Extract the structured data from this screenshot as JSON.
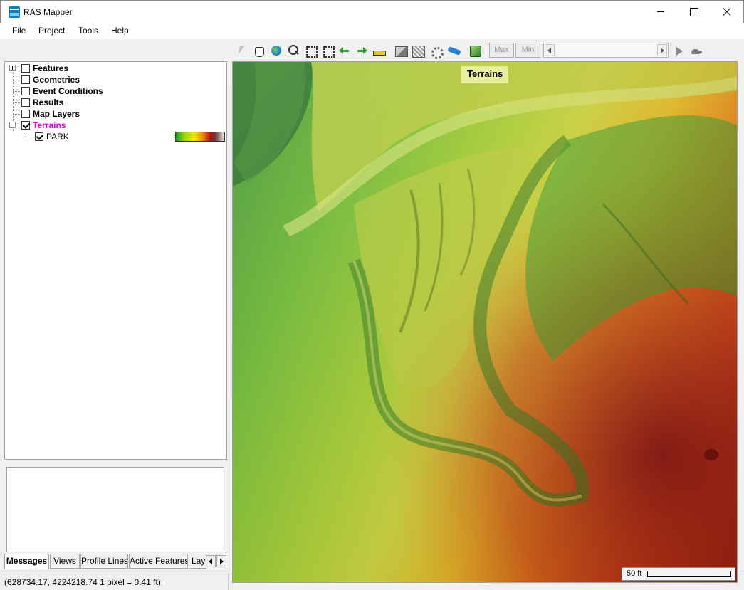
{
  "window": {
    "title": "RAS Mapper"
  },
  "menu": [
    "File",
    "Project",
    "Tools",
    "Help"
  ],
  "toolbar": {
    "max_label": "Max",
    "min_label": "Min"
  },
  "tree": {
    "items": [
      {
        "label": "Features",
        "checked": false,
        "expander": "plus"
      },
      {
        "label": "Geometries",
        "checked": false
      },
      {
        "label": "Event Conditions",
        "checked": false
      },
      {
        "label": "Results",
        "checked": false
      },
      {
        "label": "Map Layers",
        "checked": false
      },
      {
        "label": "Terrains",
        "checked": true,
        "expander": "minus",
        "active_color": "#e000e0"
      }
    ],
    "children": [
      {
        "label": "PARK",
        "checked": true
      }
    ]
  },
  "tabs": [
    "Messages",
    "Views",
    "Profile Lines",
    "Active Features",
    "Lay"
  ],
  "status": {
    "coords": "(628734.17, 4224218.74  1 pixel = 0.41 ft)"
  },
  "map": {
    "layer_label": "Terrains",
    "scale_label": "50 ft"
  }
}
